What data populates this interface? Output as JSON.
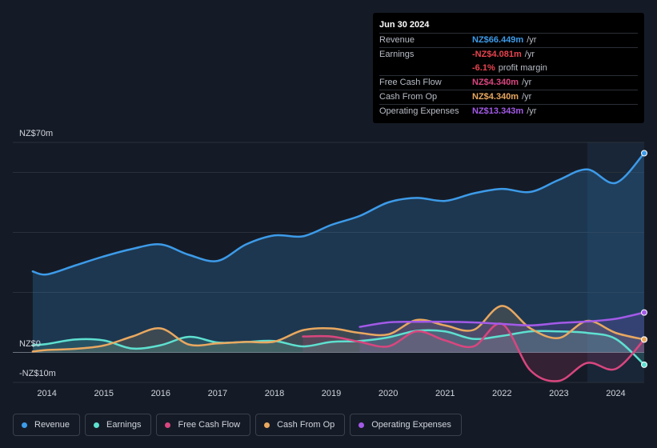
{
  "tooltip": {
    "date": "Jun 30 2024",
    "rows": [
      {
        "label": "Revenue",
        "value": "NZ$66.449m",
        "unit": "/yr",
        "color": "#3d9be9"
      },
      {
        "label": "Earnings",
        "value": "-NZ$4.081m",
        "unit": "/yr",
        "color": "#e8434f"
      },
      {
        "label": "",
        "value": "-6.1%",
        "unit": "profit margin",
        "color": "#e8434f"
      },
      {
        "label": "Free Cash Flow",
        "value": "NZ$4.340m",
        "unit": "/yr",
        "color": "#d9467f"
      },
      {
        "label": "Cash From Op",
        "value": "NZ$4.340m",
        "unit": "/yr",
        "color": "#e9a860"
      },
      {
        "label": "Operating Expenses",
        "value": "NZ$13.343m",
        "unit": "/yr",
        "color": "#a35ae8"
      }
    ]
  },
  "legend": [
    {
      "label": "Revenue",
      "color": "#3d9be9"
    },
    {
      "label": "Earnings",
      "color": "#5ee0d0"
    },
    {
      "label": "Free Cash Flow",
      "color": "#d9467f"
    },
    {
      "label": "Cash From Op",
      "color": "#e9a860"
    },
    {
      "label": "Operating Expenses",
      "color": "#a35ae8"
    }
  ],
  "chart_data": {
    "type": "area",
    "title": "",
    "y_top_label": "NZ$70m",
    "y_zero_label": "NZ$0",
    "y_bottom_label": "-NZ$10m",
    "ylim": [
      -10,
      70
    ],
    "xlim": [
      2013.4,
      2024.5
    ],
    "x_ticks": [
      "2014",
      "2015",
      "2016",
      "2017",
      "2018",
      "2019",
      "2020",
      "2021",
      "2022",
      "2023",
      "2024"
    ],
    "highlight_start": 2023.5,
    "series": [
      {
        "name": "Revenue",
        "color": "#3d9be9",
        "x": [
          2013.75,
          2014.0,
          2014.5,
          2015.0,
          2015.5,
          2016.0,
          2016.5,
          2017.0,
          2017.5,
          2018.0,
          2018.5,
          2019.0,
          2019.5,
          2020.0,
          2020.5,
          2021.0,
          2021.5,
          2022.0,
          2022.5,
          2023.0,
          2023.5,
          2024.0,
          2024.5
        ],
        "values": [
          27,
          26,
          29,
          32,
          34.5,
          36,
          32.5,
          30.5,
          36,
          39,
          38.7,
          42.5,
          45.5,
          50,
          51.5,
          50.5,
          53,
          54.5,
          53.5,
          57.5,
          61,
          56.5,
          66.4
        ]
      },
      {
        "name": "Earnings",
        "color": "#5ee0d0",
        "x": [
          2013.75,
          2014.0,
          2014.5,
          2015.0,
          2015.5,
          2016.0,
          2016.5,
          2017.0,
          2017.5,
          2018.0,
          2018.5,
          2019.0,
          2019.5,
          2020.0,
          2020.5,
          2021.0,
          2021.5,
          2022.0,
          2022.5,
          2023.0,
          2023.5,
          2024.0,
          2024.5
        ],
        "values": [
          2.4,
          2.8,
          4.3,
          4.0,
          1.3,
          2.4,
          5.2,
          3.3,
          3.5,
          3.8,
          2.0,
          3.5,
          3.8,
          5.0,
          7.2,
          7.0,
          4.5,
          5.5,
          7.0,
          7.0,
          6.5,
          4.5,
          -4.1
        ]
      },
      {
        "name": "Free Cash Flow",
        "color": "#d9467f",
        "x": [
          2018.5,
          2019.0,
          2019.5,
          2020.0,
          2020.5,
          2021.0,
          2021.5,
          2022.0,
          2022.5,
          2023.0,
          2023.5,
          2024.0,
          2024.5
        ],
        "values": [
          5.3,
          5.3,
          3.5,
          2.0,
          7.0,
          4.0,
          2.0,
          9.5,
          -6.0,
          -9.5,
          -3.5,
          -5.5,
          4.3
        ]
      },
      {
        "name": "Cash From Op",
        "color": "#e9a860",
        "x": [
          2013.75,
          2014.0,
          2014.5,
          2015.0,
          2015.5,
          2016.0,
          2016.5,
          2017.0,
          2017.5,
          2018.0,
          2018.5,
          2019.0,
          2019.5,
          2020.0,
          2020.5,
          2021.0,
          2021.5,
          2022.0,
          2022.5,
          2023.0,
          2023.5,
          2024.0,
          2024.5
        ],
        "values": [
          0.3,
          0.8,
          1.2,
          2.3,
          5.3,
          8.0,
          2.6,
          3.0,
          3.5,
          3.6,
          7.4,
          8.0,
          6.5,
          6.0,
          10.8,
          9.0,
          7.5,
          15.5,
          8.0,
          4.8,
          10.5,
          6.5,
          4.3
        ]
      },
      {
        "name": "Operating Expenses",
        "color": "#a35ae8",
        "x": [
          2019.5,
          2020.0,
          2020.5,
          2021.0,
          2021.5,
          2022.0,
          2022.5,
          2023.0,
          2023.5,
          2024.0,
          2024.5
        ],
        "values": [
          8.5,
          10.0,
          10.2,
          10.2,
          10.0,
          9.5,
          9.0,
          9.8,
          10.3,
          11.2,
          13.3
        ]
      }
    ]
  }
}
